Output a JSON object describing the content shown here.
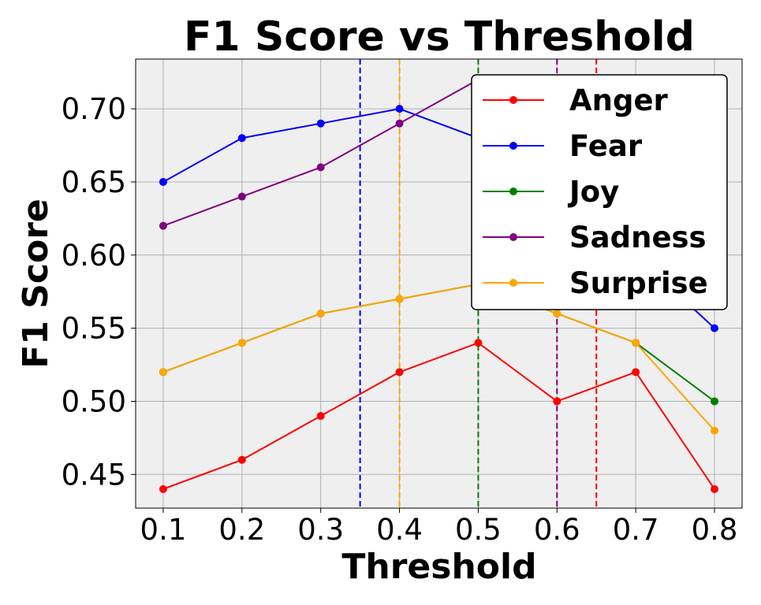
{
  "chart_data": {
    "type": "line",
    "title": "F1 Score vs Threshold",
    "xlabel": "Threshold",
    "ylabel": "F1 Score",
    "x": [
      0.1,
      0.2,
      0.3,
      0.4,
      0.5,
      0.6,
      0.7,
      0.8
    ],
    "x_tick_labels": [
      "0.1",
      "0.2",
      "0.3",
      "0.4",
      "0.5",
      "0.6",
      "0.7",
      "0.8"
    ],
    "y_tick_values": [
      0.45,
      0.5,
      0.55,
      0.6,
      0.65,
      0.7
    ],
    "y_tick_labels": [
      "0.45",
      "0.50",
      "0.55",
      "0.60",
      "0.65",
      "0.70"
    ],
    "xlim": [
      0.065,
      0.835
    ],
    "ylim": [
      0.427,
      0.734
    ],
    "grid": true,
    "plot_background": "#efefef",
    "legend_position": "top-right",
    "series": [
      {
        "name": "Anger",
        "color": "#ff0000",
        "values": [
          0.44,
          0.46,
          0.49,
          0.52,
          0.54,
          0.5,
          0.52,
          0.44
        ]
      },
      {
        "name": "Fear",
        "color": "#0000ff",
        "values": [
          0.65,
          0.68,
          0.69,
          0.7,
          0.68,
          0.64,
          0.6,
          0.55
        ]
      },
      {
        "name": "Joy",
        "color": "#008000",
        "values": [
          0.52,
          0.54,
          0.56,
          0.57,
          0.58,
          0.56,
          0.54,
          0.5
        ]
      },
      {
        "name": "Sadness",
        "color": "#800080",
        "values": [
          0.62,
          0.64,
          0.66,
          0.69,
          0.72,
          0.7,
          0.66,
          0.6
        ]
      },
      {
        "name": "Surprise",
        "color": "#ffa500",
        "values": [
          0.52,
          0.54,
          0.56,
          0.57,
          0.58,
          0.56,
          0.54,
          0.48
        ]
      }
    ],
    "threshold_lines": [
      {
        "x": 0.35,
        "color": "#0000ff"
      },
      {
        "x": 0.4,
        "color": "#ffa500"
      },
      {
        "x": 0.5,
        "color": "#008000"
      },
      {
        "x": 0.6,
        "color": "#800080"
      },
      {
        "x": 0.65,
        "color": "#ff0000"
      }
    ]
  }
}
